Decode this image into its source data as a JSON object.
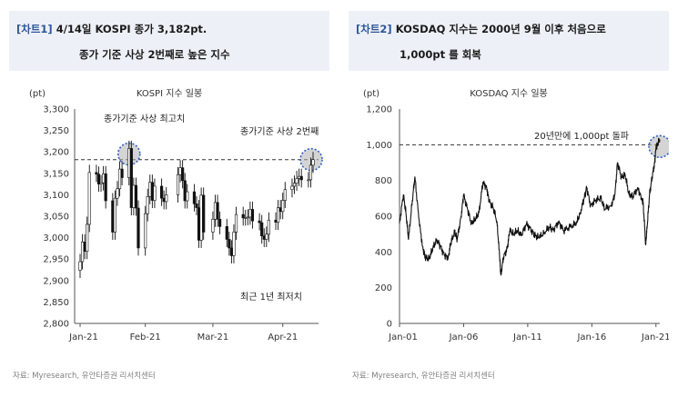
{
  "left": {
    "tag": "[차트1]",
    "title_line1": "4/14일 KOSPI 종가 3,182pt.",
    "title_line2": "종가 기준 사상 2번째로 높은 지수",
    "source": "자료: Myresearch, 유안타증권 리서치센터",
    "chart_data": {
      "type": "line",
      "title": "KOSPI 지수 일봉",
      "ylabel": "(pt)",
      "ylim": [
        2800,
        3300
      ],
      "yticks": [
        "2,800",
        "2,850",
        "2,900",
        "2,950",
        "3,000",
        "3,050",
        "3,100",
        "3,150",
        "3,200",
        "3,250",
        "3,300"
      ],
      "xticks": [
        "Jan-21",
        "Feb-21",
        "Mar-21",
        "Apr-21"
      ],
      "xrange": [
        "2021-01-04",
        "2021-04-14"
      ],
      "reference_line": 3182,
      "annotations": [
        "종가기준 사상 최고치",
        "종가기준 사상 2번째",
        "최근 1년 최저치"
      ],
      "series": [
        {
          "x": [
            "2021-01-04",
            "2021-01-05",
            "2021-01-06",
            "2021-01-07",
            "2021-01-08",
            "2021-01-11",
            "2021-01-12",
            "2021-01-13",
            "2021-01-14",
            "2021-01-15",
            "2021-01-18",
            "2021-01-19",
            "2021-01-20",
            "2021-01-21",
            "2021-01-22",
            "2021-01-25",
            "2021-01-26",
            "2021-01-27",
            "2021-01-28",
            "2021-01-29",
            "2021-02-01",
            "2021-02-02",
            "2021-02-03",
            "2021-02-04",
            "2021-02-05",
            "2021-02-08",
            "2021-02-09",
            "2021-02-10",
            "2021-02-15",
            "2021-02-16",
            "2021-02-17",
            "2021-02-18",
            "2021-02-19",
            "2021-02-22",
            "2021-02-23",
            "2021-02-24",
            "2021-02-25",
            "2021-02-26",
            "2021-03-02",
            "2021-03-03",
            "2021-03-04",
            "2021-03-05",
            "2021-03-08",
            "2021-03-09",
            "2021-03-10",
            "2021-03-11",
            "2021-03-12",
            "2021-03-15",
            "2021-03-16",
            "2021-03-17",
            "2021-03-18",
            "2021-03-19",
            "2021-03-22",
            "2021-03-23",
            "2021-03-24",
            "2021-03-25",
            "2021-03-26",
            "2021-03-29",
            "2021-03-30",
            "2021-03-31",
            "2021-04-01",
            "2021-04-02",
            "2021-04-05",
            "2021-04-06",
            "2021-04-07",
            "2021-04-08",
            "2021-04-09",
            "2021-04-12",
            "2021-04-13",
            "2021-04-14"
          ],
          "y": [
            2944,
            2990,
            2968,
            3031,
            3152,
            3148,
            3125,
            3128,
            3149,
            3086,
            3013,
            3092,
            3114,
            3160,
            3140,
            3208,
            3070,
            3122,
            3069,
            2976,
            3056,
            3096,
            3129,
            3087,
            3120,
            3092,
            3084,
            3100,
            3147,
            3163,
            3133,
            3086,
            3107,
            3079,
            3070,
            2994,
            3099,
            3013,
            3043,
            3082,
            3043,
            3026,
            2996,
            2976,
            2958,
            3013,
            3054,
            3046,
            3047,
            3048,
            3066,
            3039,
            3035,
            3004,
            2996,
            3008,
            3041,
            3036,
            3070,
            3061,
            3087,
            3112,
            3120,
            3127,
            3138,
            3143,
            3135,
            3135,
            3169,
            3182
          ]
        }
      ]
    }
  },
  "right": {
    "tag": "[차트2]",
    "title_line1": "KOSDAQ 지수는 2000년 9월 이후 처음으로",
    "title_line2": "1,000pt 를 회복",
    "source": "자료: Myresearch, 유안타증권 리서치센터",
    "chart_data": {
      "type": "line",
      "title": "KOSDAQ 지수 일봉",
      "ylabel": "(pt)",
      "ylim": [
        0,
        1200
      ],
      "yticks": [
        "0",
        "200",
        "400",
        "600",
        "800",
        "1,000",
        "1,200"
      ],
      "xticks": [
        "Jan-01",
        "Jan-06",
        "Jan-11",
        "Jan-16",
        "Jan-21"
      ],
      "xrange": [
        2001.0,
        2021.3
      ],
      "reference_line": 1000,
      "annotations": [
        "20년만에 1,000pt 돌파"
      ],
      "series": [
        {
          "x": [
            2001.0,
            2001.3,
            2001.5,
            2001.7,
            2002.0,
            2002.2,
            2002.5,
            2002.8,
            2003.0,
            2003.3,
            2003.6,
            2003.9,
            2004.2,
            2004.5,
            2004.8,
            2005.0,
            2005.3,
            2005.5,
            2005.8,
            2006.0,
            2006.3,
            2006.6,
            2006.9,
            2007.2,
            2007.5,
            2007.8,
            2008.0,
            2008.3,
            2008.6,
            2008.8,
            2008.9,
            2009.1,
            2009.4,
            2009.6,
            2009.9,
            2010.2,
            2010.5,
            2010.9,
            2011.3,
            2011.6,
            2011.9,
            2012.3,
            2012.7,
            2013.0,
            2013.4,
            2013.8,
            2014.3,
            2014.8,
            2015.1,
            2015.4,
            2015.6,
            2015.9,
            2016.3,
            2016.7,
            2017.0,
            2017.5,
            2017.8,
            2018.0,
            2018.3,
            2018.6,
            2018.9,
            2019.2,
            2019.6,
            2019.9,
            2020.0,
            2020.2,
            2020.3,
            2020.5,
            2020.7,
            2020.9,
            2021.0,
            2021.1,
            2021.3
          ],
          "y": [
            560,
            720,
            620,
            470,
            690,
            820,
            590,
            430,
            370,
            360,
            420,
            470,
            430,
            380,
            370,
            450,
            510,
            470,
            600,
            720,
            640,
            560,
            580,
            620,
            790,
            760,
            680,
            650,
            570,
            380,
            270,
            370,
            420,
            520,
            500,
            520,
            490,
            560,
            520,
            490,
            480,
            510,
            540,
            520,
            570,
            520,
            540,
            560,
            620,
            700,
            760,
            660,
            690,
            700,
            640,
            660,
            720,
            900,
            820,
            830,
            720,
            710,
            760,
            690,
            680,
            440,
            530,
            720,
            820,
            900,
            980,
            1000,
            1030
          ]
        }
      ]
    }
  }
}
